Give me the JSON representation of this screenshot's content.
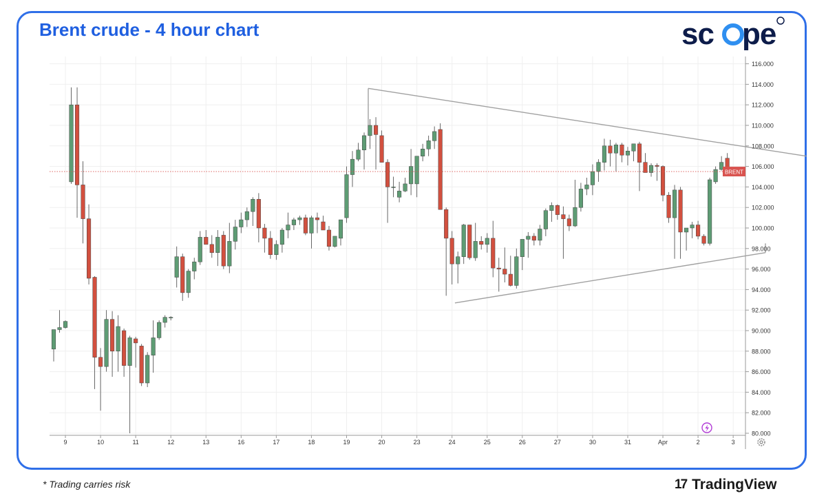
{
  "header": {
    "title": "Brent crude - 4 hour chart"
  },
  "brand": {
    "name": "scope"
  },
  "footer": {
    "risk_note": "* Trading carries risk",
    "provider": "TradingView",
    "provider_mark": "17"
  },
  "colors": {
    "up": "#5e9c74",
    "down": "#d2503f",
    "trendline": "#a0a0a0",
    "frame": "#2f6fe8",
    "title": "#1f5fe0",
    "price_tag": "#d9534f"
  },
  "chart_data": {
    "type": "candlestick",
    "title": "",
    "ylim": [
      80,
      117
    ],
    "y_ticks": [
      "80.000",
      "82.000",
      "84.000",
      "86.000",
      "88.000",
      "90.000",
      "92.000",
      "94.000",
      "96.000",
      "98.000",
      "100.000",
      "102.000",
      "104.000",
      "106.000",
      "108.000",
      "110.000",
      "112.000",
      "114.000",
      "116.000"
    ],
    "x_ticks": [
      {
        "label": "9",
        "i": 2
      },
      {
        "label": "10",
        "i": 8
      },
      {
        "label": "11",
        "i": 14
      },
      {
        "label": "12",
        "i": 20
      },
      {
        "label": "13",
        "i": 26
      },
      {
        "label": "16",
        "i": 32
      },
      {
        "label": "17",
        "i": 38
      },
      {
        "label": "18",
        "i": 44
      },
      {
        "label": "19",
        "i": 50
      },
      {
        "label": "20",
        "i": 56
      },
      {
        "label": "23",
        "i": 62
      },
      {
        "label": "24",
        "i": 68
      },
      {
        "label": "25",
        "i": 74
      },
      {
        "label": "26",
        "i": 80
      },
      {
        "label": "27",
        "i": 86
      },
      {
        "label": "30",
        "i": 92
      },
      {
        "label": "31",
        "i": 98
      },
      {
        "label": "Apr",
        "i": 104
      },
      {
        "label": "2",
        "i": 110
      },
      {
        "label": "3",
        "i": 116
      }
    ],
    "last_price_label": "BRENT",
    "last_price": 105.5,
    "candles": [
      [
        88.2,
        90.1,
        87.0,
        90.1
      ],
      [
        90.1,
        92.0,
        89.8,
        90.3
      ],
      [
        90.3,
        91.0,
        90.2,
        90.9
      ],
      [
        104.5,
        113.7,
        104.3,
        112.0
      ],
      [
        112.0,
        113.7,
        101.0,
        104.2
      ],
      [
        104.2,
        106.5,
        98.5,
        100.9
      ],
      [
        100.9,
        102.3,
        94.5,
        95.1
      ],
      [
        95.2,
        95.3,
        84.3,
        87.4
      ],
      [
        87.4,
        88.3,
        82.2,
        86.5
      ],
      [
        86.5,
        92.0,
        86.0,
        91.1
      ],
      [
        91.1,
        91.9,
        85.5,
        88.0
      ],
      [
        88.0,
        91.5,
        86.0,
        90.4
      ],
      [
        90.0,
        90.2,
        85.5,
        86.6
      ],
      [
        86.6,
        89.5,
        80.0,
        89.3
      ],
      [
        89.2,
        89.4,
        86.4,
        88.8
      ],
      [
        88.5,
        88.7,
        84.6,
        84.9
      ],
      [
        84.9,
        87.9,
        84.5,
        87.6
      ],
      [
        87.6,
        91.0,
        85.9,
        89.3
      ],
      [
        89.3,
        91.0,
        89.1,
        90.8
      ],
      [
        90.8,
        91.5,
        90.3,
        91.3
      ],
      [
        91.3,
        91.4,
        91.0,
        91.3
      ],
      [
        95.2,
        98.2,
        94.2,
        97.2
      ],
      [
        97.2,
        97.5,
        92.9,
        93.7
      ],
      [
        93.7,
        96.0,
        93.2,
        95.8
      ],
      [
        95.8,
        97.1,
        95.0,
        96.7
      ],
      [
        96.7,
        99.7,
        96.4,
        99.1
      ],
      [
        99.1,
        99.8,
        98.4,
        98.4
      ],
      [
        98.4,
        99.3,
        97.1,
        97.6
      ],
      [
        97.6,
        99.8,
        96.3,
        99.1
      ],
      [
        99.3,
        99.7,
        96.0,
        96.3
      ],
      [
        96.3,
        100.5,
        95.6,
        98.7
      ],
      [
        98.7,
        100.8,
        97.9,
        100.1
      ],
      [
        100.1,
        101.5,
        99.5,
        100.8
      ],
      [
        100.8,
        102.0,
        100.1,
        101.6
      ],
      [
        101.6,
        103.0,
        100.2,
        102.8
      ],
      [
        102.8,
        103.4,
        98.6,
        100.0
      ],
      [
        100.0,
        100.4,
        97.6,
        99.0
      ],
      [
        99.0,
        99.7,
        97.0,
        97.4
      ],
      [
        97.4,
        98.8,
        96.9,
        98.4
      ],
      [
        98.4,
        100.0,
        97.6,
        99.8
      ],
      [
        99.8,
        101.5,
        99.0,
        100.3
      ],
      [
        100.3,
        101.0,
        99.8,
        100.8
      ],
      [
        100.8,
        101.2,
        100.3,
        101.0
      ],
      [
        101.0,
        101.3,
        99.3,
        99.5
      ],
      [
        99.5,
        101.2,
        98.0,
        101.0
      ],
      [
        101.0,
        101.5,
        99.5,
        100.8
      ],
      [
        100.6,
        101.2,
        99.8,
        99.8
      ],
      [
        99.8,
        100.2,
        97.8,
        98.2
      ],
      [
        98.2,
        99.2,
        98.1,
        99.2
      ],
      [
        99.0,
        100.6,
        98.3,
        100.8
      ],
      [
        101.0,
        106.0,
        100.5,
        105.2
      ],
      [
        105.2,
        107.5,
        104.0,
        106.7
      ],
      [
        106.7,
        108.3,
        106.5,
        107.6
      ],
      [
        107.6,
        109.3,
        105.7,
        109.0
      ],
      [
        109.0,
        110.6,
        107.7,
        110.0
      ],
      [
        110.0,
        110.8,
        105.7,
        109.1
      ],
      [
        109.0,
        109.5,
        106.4,
        106.4
      ],
      [
        106.4,
        106.7,
        100.5,
        104.0
      ],
      [
        104.0,
        105.0,
        103.0,
        104.0
      ],
      [
        103.0,
        104.5,
        102.5,
        103.6
      ],
      [
        103.6,
        104.9,
        103.5,
        104.3
      ],
      [
        104.3,
        107.7,
        103.2,
        106.0
      ],
      [
        104.3,
        107.0,
        103.0,
        107.0
      ],
      [
        107.0,
        108.2,
        106.5,
        107.7
      ],
      [
        107.7,
        109.0,
        107.0,
        108.5
      ],
      [
        108.5,
        109.9,
        107.7,
        109.4
      ],
      [
        109.6,
        110.2,
        101.8,
        101.8
      ],
      [
        101.8,
        102.0,
        93.4,
        99.0
      ],
      [
        99.0,
        99.7,
        94.5,
        96.5
      ],
      [
        96.5,
        97.7,
        94.6,
        97.2
      ],
      [
        97.2,
        100.4,
        96.5,
        100.3
      ],
      [
        100.3,
        100.3,
        96.9,
        97.1
      ],
      [
        97.1,
        100.5,
        96.8,
        98.7
      ],
      [
        98.7,
        99.2,
        97.9,
        98.4
      ],
      [
        98.4,
        99.5,
        97.6,
        99.0
      ],
      [
        99.0,
        100.7,
        95.2,
        96.1
      ],
      [
        96.1,
        97.1,
        93.8,
        96.0
      ],
      [
        96.0,
        98.1,
        94.7,
        95.5
      ],
      [
        95.5,
        97.3,
        94.3,
        94.4
      ],
      [
        94.4,
        98.0,
        94.1,
        97.2
      ],
      [
        97.2,
        98.7,
        95.9,
        98.9
      ],
      [
        98.9,
        99.6,
        97.1,
        99.2
      ],
      [
        99.2,
        99.5,
        98.3,
        98.8
      ],
      [
        98.8,
        100.3,
        98.3,
        99.9
      ],
      [
        99.9,
        101.9,
        99.2,
        101.7
      ],
      [
        101.7,
        102.5,
        100.6,
        102.2
      ],
      [
        102.2,
        102.3,
        100.8,
        101.3
      ],
      [
        101.3,
        102.1,
        97.0,
        100.9
      ],
      [
        100.9,
        101.3,
        99.7,
        100.2
      ],
      [
        100.2,
        104.7,
        100.1,
        102.0
      ],
      [
        102.0,
        104.4,
        101.6,
        103.8
      ],
      [
        103.8,
        104.9,
        103.2,
        104.2
      ],
      [
        104.2,
        106.2,
        103.2,
        105.5
      ],
      [
        105.5,
        106.7,
        104.5,
        106.4
      ],
      [
        106.4,
        108.7,
        105.6,
        108.0
      ],
      [
        108.0,
        108.6,
        106.0,
        107.3
      ],
      [
        107.3,
        108.3,
        105.5,
        108.1
      ],
      [
        108.1,
        108.3,
        106.4,
        107.1
      ],
      [
        107.1,
        107.9,
        106.1,
        107.5
      ],
      [
        107.5,
        108.1,
        106.5,
        108.2
      ],
      [
        108.2,
        108.4,
        103.6,
        106.4
      ],
      [
        106.4,
        107.3,
        105.5,
        105.4
      ],
      [
        105.4,
        106.3,
        105.0,
        106.1
      ],
      [
        106.1,
        106.3,
        104.6,
        106.0
      ],
      [
        106.0,
        106.1,
        102.6,
        103.2
      ],
      [
        103.2,
        103.5,
        100.5,
        101.0
      ],
      [
        101.0,
        104.2,
        97.0,
        103.7
      ],
      [
        103.7,
        104.0,
        97.0,
        99.6
      ],
      [
        99.6,
        100.0,
        97.8,
        100.0
      ],
      [
        100.0,
        100.6,
        99.0,
        100.3
      ],
      [
        100.3,
        100.7,
        98.9,
        99.2
      ],
      [
        99.2,
        99.4,
        98.3,
        98.5
      ],
      [
        98.5,
        104.9,
        98.3,
        104.7
      ],
      [
        104.5,
        106.0,
        104.3,
        105.7
      ],
      [
        105.7,
        107.0,
        105.6,
        106.4
      ],
      [
        106.8,
        107.3,
        105.4,
        105.5
      ]
    ],
    "trendlines": [
      {
        "from": {
          "i": 53.7,
          "y": 113.6
        },
        "to": {
          "i": 128.5,
          "y": 107.0
        }
      },
      {
        "from": {
          "i": 53.7,
          "y": 113.6
        },
        "to": {
          "i": 53.7,
          "y": 109.0
        }
      },
      {
        "from": {
          "i": 68.5,
          "y": 92.7
        },
        "to": {
          "i": 121.5,
          "y": 97.6
        }
      },
      {
        "from": {
          "i": 121.5,
          "y": 97.6
        },
        "to": {
          "i": 121.5,
          "y": 98.5
        }
      }
    ]
  }
}
